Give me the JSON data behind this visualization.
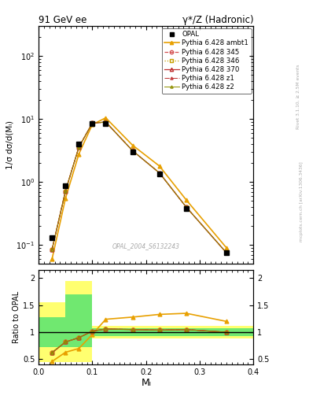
{
  "title_left": "91 GeV ee",
  "title_right": "γ*/Z (Hadronic)",
  "ylabel_main": "1/σ dσ/d(Mₗ)",
  "ylabel_ratio": "Ratio to OPAL",
  "xlabel": "Mₗ",
  "watermark": "OPAL_2004_S6132243",
  "right_label": "Rivet 3.1.10, ≥ 2.5M events",
  "right_label2": "mcplots.cern.ch [arXiv:1306.3436]",
  "x_opal": [
    0.025,
    0.05,
    0.075,
    0.1,
    0.125,
    0.175,
    0.225,
    0.275,
    0.35
  ],
  "y_opal": [
    0.13,
    0.88,
    4.0,
    8.5,
    8.5,
    3.0,
    1.35,
    0.38,
    0.075
  ],
  "x_py345": [
    0.025,
    0.05,
    0.075,
    0.1,
    0.125,
    0.175,
    0.225,
    0.275,
    0.35
  ],
  "y_py345": [
    0.085,
    0.72,
    3.6,
    8.65,
    9.0,
    3.15,
    1.4,
    0.4,
    0.075
  ],
  "x_py346": [
    0.025,
    0.05,
    0.075,
    0.1,
    0.125,
    0.175,
    0.225,
    0.275,
    0.35
  ],
  "y_py346": [
    0.085,
    0.72,
    3.6,
    8.65,
    9.0,
    3.15,
    1.4,
    0.4,
    0.075
  ],
  "x_py370": [
    0.025,
    0.05,
    0.075,
    0.1,
    0.125,
    0.175,
    0.225,
    0.275,
    0.35
  ],
  "y_py370": [
    0.085,
    0.72,
    3.6,
    8.65,
    9.0,
    3.15,
    1.4,
    0.4,
    0.075
  ],
  "x_pyambt1": [
    0.025,
    0.05,
    0.075,
    0.1,
    0.125,
    0.175,
    0.225,
    0.275,
    0.35
  ],
  "y_pyambt1": [
    0.06,
    0.55,
    2.8,
    8.2,
    10.5,
    3.85,
    1.8,
    0.52,
    0.09
  ],
  "x_pyz1": [
    0.025,
    0.05,
    0.075,
    0.1,
    0.125,
    0.175,
    0.225,
    0.275,
    0.35
  ],
  "y_pyz1": [
    0.085,
    0.72,
    3.6,
    8.65,
    9.0,
    3.15,
    1.4,
    0.4,
    0.075
  ],
  "x_pyz2": [
    0.025,
    0.05,
    0.075,
    0.1,
    0.125,
    0.175,
    0.225,
    0.275,
    0.35
  ],
  "y_pyz2": [
    0.085,
    0.72,
    3.6,
    8.65,
    9.0,
    3.15,
    1.4,
    0.4,
    0.075
  ],
  "ratio_x": [
    0.025,
    0.05,
    0.075,
    0.1,
    0.125,
    0.175,
    0.225,
    0.275,
    0.35
  ],
  "ratio_345": [
    0.62,
    0.82,
    0.9,
    1.02,
    1.06,
    1.05,
    1.04,
    1.05,
    1.0
  ],
  "ratio_346": [
    0.63,
    0.82,
    0.9,
    1.02,
    1.06,
    1.05,
    1.04,
    1.05,
    1.0
  ],
  "ratio_370": [
    0.62,
    0.82,
    0.9,
    1.02,
    1.06,
    1.05,
    1.04,
    1.05,
    1.0
  ],
  "ratio_ambt1": [
    0.46,
    0.63,
    0.7,
    0.96,
    1.24,
    1.28,
    1.33,
    1.35,
    1.2
  ],
  "ratio_z1": [
    0.62,
    0.82,
    0.9,
    1.02,
    1.06,
    1.05,
    1.04,
    1.05,
    1.0
  ],
  "ratio_z2": [
    0.63,
    0.82,
    0.9,
    1.02,
    1.06,
    1.05,
    1.04,
    1.05,
    1.0
  ],
  "band_edges": [
    0.0,
    0.025,
    0.05,
    0.1,
    0.4
  ],
  "yellow_lo": [
    0.45,
    0.45,
    0.45,
    0.88,
    0.88
  ],
  "yellow_hi": [
    1.55,
    1.55,
    1.95,
    1.12,
    1.12
  ],
  "green_lo": [
    0.72,
    0.72,
    0.72,
    0.93,
    0.93
  ],
  "green_hi": [
    1.28,
    1.28,
    1.7,
    1.07,
    1.07
  ],
  "color_345": "#d45050",
  "color_346": "#c8a000",
  "color_370": "#c03030",
  "color_ambt1": "#e8a000",
  "color_z1": "#c03030",
  "color_z2": "#909000",
  "color_opal": "#000000",
  "ylim_main": [
    0.05,
    300
  ],
  "ylim_ratio": [
    0.4,
    2.15
  ],
  "yticks_ratio": [
    0.5,
    1.0,
    1.5,
    2.0
  ],
  "xlim": [
    0.0,
    0.4
  ]
}
